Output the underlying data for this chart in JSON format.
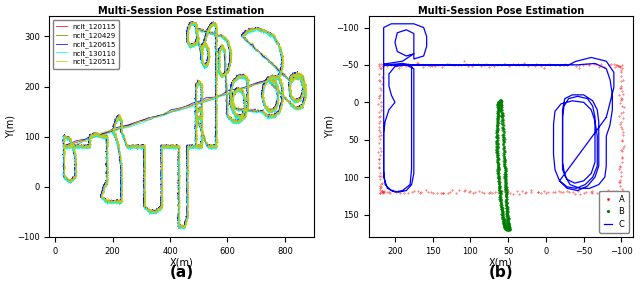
{
  "title_a": "Multi-Session Pose Estimation",
  "title_b": "Multi-Session Pose Estimation",
  "xlabel": "X(m)",
  "ylabel": "Y(m)",
  "label_a": "(a)",
  "label_b": "(b)",
  "legend_a": [
    "nclt_120115",
    "nclt_120429",
    "nclt_120615",
    "nclt_130110",
    "nclt_120511"
  ],
  "colors_a": [
    "red",
    "#808000",
    "blue",
    "cyan",
    "#cccc00"
  ],
  "legend_b": [
    "A",
    "B",
    "C"
  ],
  "colors_b": [
    "red",
    "green",
    "blue"
  ],
  "xlim_a": [
    -20,
    900
  ],
  "ylim_a": [
    -100,
    340
  ],
  "xlim_b": [
    235,
    -115
  ],
  "ylim_b": [
    180,
    -115
  ],
  "xticks_a": [
    0,
    200,
    400,
    600,
    800
  ],
  "yticks_a": [
    -100,
    0,
    100,
    200,
    300
  ],
  "xticks_b": [
    200,
    150,
    100,
    50,
    0,
    -50,
    -100
  ],
  "yticks_b": [
    -100,
    -50,
    0,
    50,
    100,
    150
  ],
  "background": "white"
}
